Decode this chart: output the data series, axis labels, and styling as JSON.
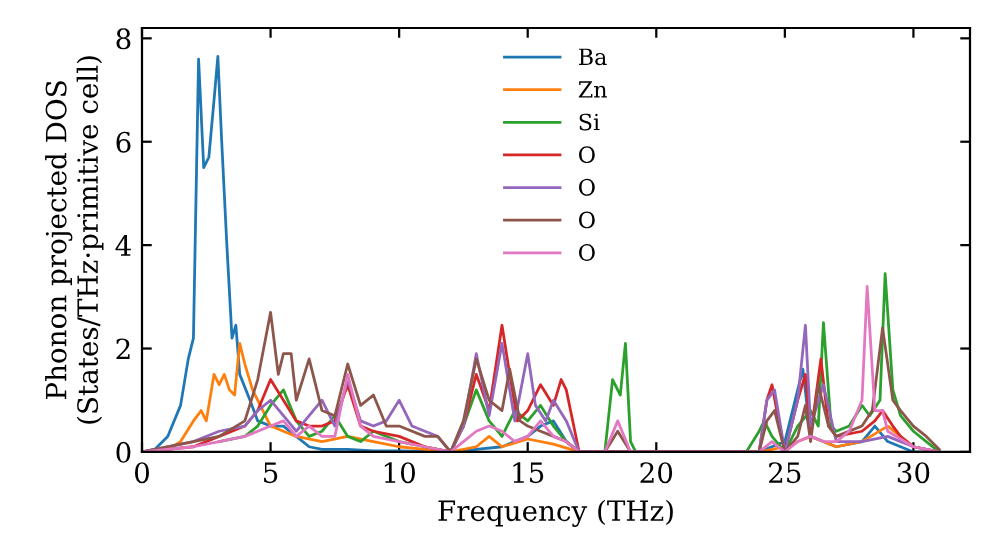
{
  "chart_data": {
    "type": "line",
    "xlabel": "Frequency (THz)",
    "ylabel": "Phonon projected DOS\n(States/THz·primitive cell)",
    "xlim": [
      0,
      32.2
    ],
    "ylim": [
      0,
      8.2
    ],
    "xticks": [
      0,
      5,
      10,
      15,
      20,
      25,
      30
    ],
    "yticks": [
      0,
      2,
      4,
      6,
      8
    ],
    "grid": false,
    "legend": "top",
    "marker": "none",
    "line_style": "solid",
    "series": [
      {
        "name": "Ba",
        "color": "#1f77b4",
        "x": [
          0,
          0.5,
          1,
          1.5,
          1.8,
          2.0,
          2.2,
          2.4,
          2.6,
          2.8,
          2.95,
          3.1,
          3.3,
          3.5,
          3.65,
          3.8,
          4.2,
          4.5,
          5,
          5.5,
          6,
          6.5,
          7,
          8,
          9,
          10,
          11,
          12,
          13,
          14,
          15,
          15.5,
          16,
          16.5,
          17,
          24,
          25,
          25.7,
          26,
          27,
          28,
          28.5,
          29,
          30,
          31
        ],
        "values": [
          0,
          0.05,
          0.3,
          0.9,
          1.8,
          2.2,
          7.6,
          5.5,
          5.7,
          6.8,
          7.65,
          6,
          4,
          2.2,
          2.45,
          1.5,
          1.0,
          0.6,
          0.5,
          0.5,
          0.3,
          0.1,
          0.05,
          0.05,
          0.02,
          0.02,
          0.01,
          0,
          0.05,
          0.1,
          0.3,
          0.5,
          0.6,
          0.2,
          0,
          0,
          0.2,
          1.6,
          0.3,
          0.1,
          0.2,
          0.5,
          0.2,
          0,
          0
        ]
      },
      {
        "name": "Zn",
        "color": "#ff7f0e",
        "x": [
          0,
          1,
          1.5,
          2,
          2.3,
          2.5,
          2.8,
          3.0,
          3.2,
          3.4,
          3.6,
          3.8,
          4.0,
          4.3,
          4.6,
          5,
          5.5,
          6,
          7,
          8,
          9,
          10,
          11,
          12,
          13,
          13.5,
          14,
          15,
          16,
          17,
          24,
          25,
          26,
          27,
          28,
          29,
          30,
          31
        ],
        "values": [
          0,
          0.05,
          0.2,
          0.6,
          0.8,
          0.6,
          1.5,
          1.3,
          1.5,
          1.2,
          1.1,
          2.1,
          1.7,
          1.2,
          0.9,
          0.5,
          0.4,
          0.3,
          0.2,
          0.3,
          0.2,
          0.1,
          0.05,
          0,
          0.1,
          0.3,
          0.1,
          0.25,
          0.15,
          0,
          0,
          0.1,
          0.3,
          0.1,
          0.2,
          0.5,
          0.1,
          0
        ]
      },
      {
        "name": "Si",
        "color": "#2ca02c",
        "x": [
          3,
          4,
          4.5,
          5,
          5.5,
          6,
          6.5,
          7,
          7.5,
          8,
          8.5,
          9,
          10,
          11,
          12,
          12.5,
          13,
          13.5,
          14,
          14.5,
          15,
          15.5,
          16,
          16.5,
          17,
          18,
          18.3,
          18.6,
          18.8,
          19,
          19.2,
          23.5,
          24,
          24.2,
          24.5,
          25,
          25.5,
          26,
          26.3,
          26.5,
          26.8,
          27,
          27.5,
          28,
          28.3,
          28.7,
          28.9,
          29.2,
          29.5,
          30,
          30.5,
          31
        ],
        "values": [
          0.2,
          0.3,
          0.5,
          0.9,
          1.2,
          0.6,
          0.3,
          0.4,
          0.7,
          0.3,
          0.2,
          0.4,
          0.2,
          0.1,
          0,
          0.5,
          1.2,
          0.6,
          0.3,
          0.8,
          0.6,
          0.9,
          0.5,
          0.2,
          0,
          0,
          1.4,
          1.1,
          2.1,
          0.2,
          0,
          0,
          0.4,
          0.6,
          0.3,
          0,
          0.5,
          0.8,
          0.5,
          2.5,
          0.5,
          0.4,
          0.5,
          0.9,
          0.7,
          1.0,
          3.45,
          1.2,
          0.7,
          0.4,
          0.2,
          0
        ]
      },
      {
        "name": "O",
        "color": "#d62728",
        "x": [
          0,
          2,
          3,
          4,
          4.5,
          5,
          5.5,
          6,
          6.5,
          7,
          7.5,
          8,
          8.5,
          9,
          10,
          11,
          12,
          12.5,
          13,
          13.5,
          14,
          14.3,
          14.6,
          15,
          15.5,
          16,
          16.3,
          16.5,
          17,
          24,
          24.3,
          24.5,
          24.8,
          25,
          25.5,
          25.8,
          26,
          26.4,
          26.7,
          27,
          28,
          28.5,
          28.8,
          29.2,
          29.5,
          30,
          31
        ],
        "values": [
          0,
          0.1,
          0.3,
          0.5,
          0.8,
          1.4,
          1.0,
          0.6,
          0.5,
          0.5,
          0.6,
          1.3,
          0.5,
          0.4,
          0.3,
          0.1,
          0,
          0.5,
          1.5,
          0.8,
          2.45,
          1.5,
          0.6,
          0.8,
          1.3,
          0.9,
          1.4,
          1.2,
          0,
          0,
          1.0,
          1.3,
          0.5,
          0,
          1.0,
          1.5,
          0.3,
          1.8,
          0.5,
          0.3,
          0.4,
          0.6,
          0.8,
          0.5,
          0.3,
          0.1,
          0
        ]
      },
      {
        "name": "O",
        "color": "#9467bd",
        "x": [
          0,
          2,
          3,
          4,
          4.5,
          5,
          5.5,
          6,
          6.5,
          7,
          7.5,
          8,
          8.5,
          9,
          9.5,
          10,
          10.5,
          11,
          11.5,
          12,
          12.5,
          13,
          13.5,
          14,
          14.5,
          15,
          15.3,
          15.7,
          16,
          16.5,
          17,
          24,
          24.3,
          24.6,
          25,
          25.5,
          25.8,
          26,
          26.5,
          27,
          28,
          29,
          30,
          31
        ],
        "values": [
          0,
          0.2,
          0.4,
          0.5,
          0.8,
          1.0,
          0.7,
          0.4,
          0.7,
          1.0,
          0.5,
          1.4,
          0.6,
          0.5,
          0.6,
          1.0,
          0.5,
          0.4,
          0.3,
          0,
          0.5,
          1.9,
          0.7,
          2.1,
          0.6,
          1.9,
          0.9,
          0.6,
          1.0,
          0.6,
          0,
          0,
          1.0,
          1.2,
          0,
          1.0,
          2.45,
          0.5,
          1.3,
          0.2,
          0.2,
          0.3,
          0.1,
          0
        ]
      },
      {
        "name": "O",
        "color": "#8c564b",
        "x": [
          0,
          2,
          3,
          4,
          4.5,
          5,
          5.3,
          5.5,
          5.8,
          6,
          6.5,
          7,
          7.5,
          8,
          8.5,
          9,
          9.5,
          10,
          11,
          11.5,
          12,
          12.5,
          13,
          13.5,
          14,
          14.3,
          14.7,
          15,
          15.5,
          16,
          16.5,
          17,
          18,
          18.5,
          19,
          24,
          24.3,
          24.6,
          25,
          25.5,
          25.8,
          26,
          26.3,
          26.7,
          27,
          28,
          28.4,
          28.8,
          29.2,
          29.5,
          30,
          30.5,
          31
        ],
        "values": [
          0,
          0.2,
          0.3,
          0.6,
          1.4,
          2.7,
          1.5,
          1.9,
          1.9,
          1.0,
          1.8,
          0.8,
          0.7,
          1.7,
          0.9,
          1.1,
          0.5,
          0.5,
          0.3,
          0.3,
          0,
          0.6,
          1.8,
          1.0,
          0.8,
          1.6,
          0.6,
          0.5,
          0.4,
          0.3,
          0.2,
          0,
          0,
          0.4,
          0,
          0,
          0.6,
          0.8,
          0,
          0.3,
          0.9,
          0.2,
          1.3,
          0.5,
          0.3,
          0.5,
          0.8,
          2.4,
          1.0,
          0.8,
          0.5,
          0.3,
          0.05
        ]
      },
      {
        "name": "O",
        "color": "#e377c2",
        "x": [
          0,
          2,
          3,
          4,
          4.5,
          5,
          5.5,
          6,
          6.5,
          7,
          7.5,
          8,
          8.5,
          9,
          10,
          11,
          12,
          12.5,
          13,
          13.5,
          14,
          14.5,
          15,
          15.5,
          16,
          16.5,
          17,
          18,
          18.5,
          19,
          24,
          24.5,
          25,
          25.5,
          26,
          26.5,
          27,
          27.5,
          28,
          28.2,
          28.5,
          28.8,
          29,
          30,
          31
        ],
        "values": [
          0,
          0.1,
          0.2,
          0.3,
          0.4,
          0.5,
          0.6,
          0.3,
          0.5,
          0.3,
          0.3,
          1.5,
          0.5,
          0.3,
          0.2,
          0.1,
          0,
          0.2,
          0.4,
          0.5,
          0.4,
          0.2,
          0.3,
          0.6,
          0.3,
          0.2,
          0,
          0,
          0.6,
          0,
          0,
          0.2,
          0,
          0.2,
          0.3,
          0.2,
          0.2,
          0.4,
          1.0,
          3.2,
          0.8,
          0.8,
          0.4,
          0.1,
          0
        ]
      }
    ]
  }
}
